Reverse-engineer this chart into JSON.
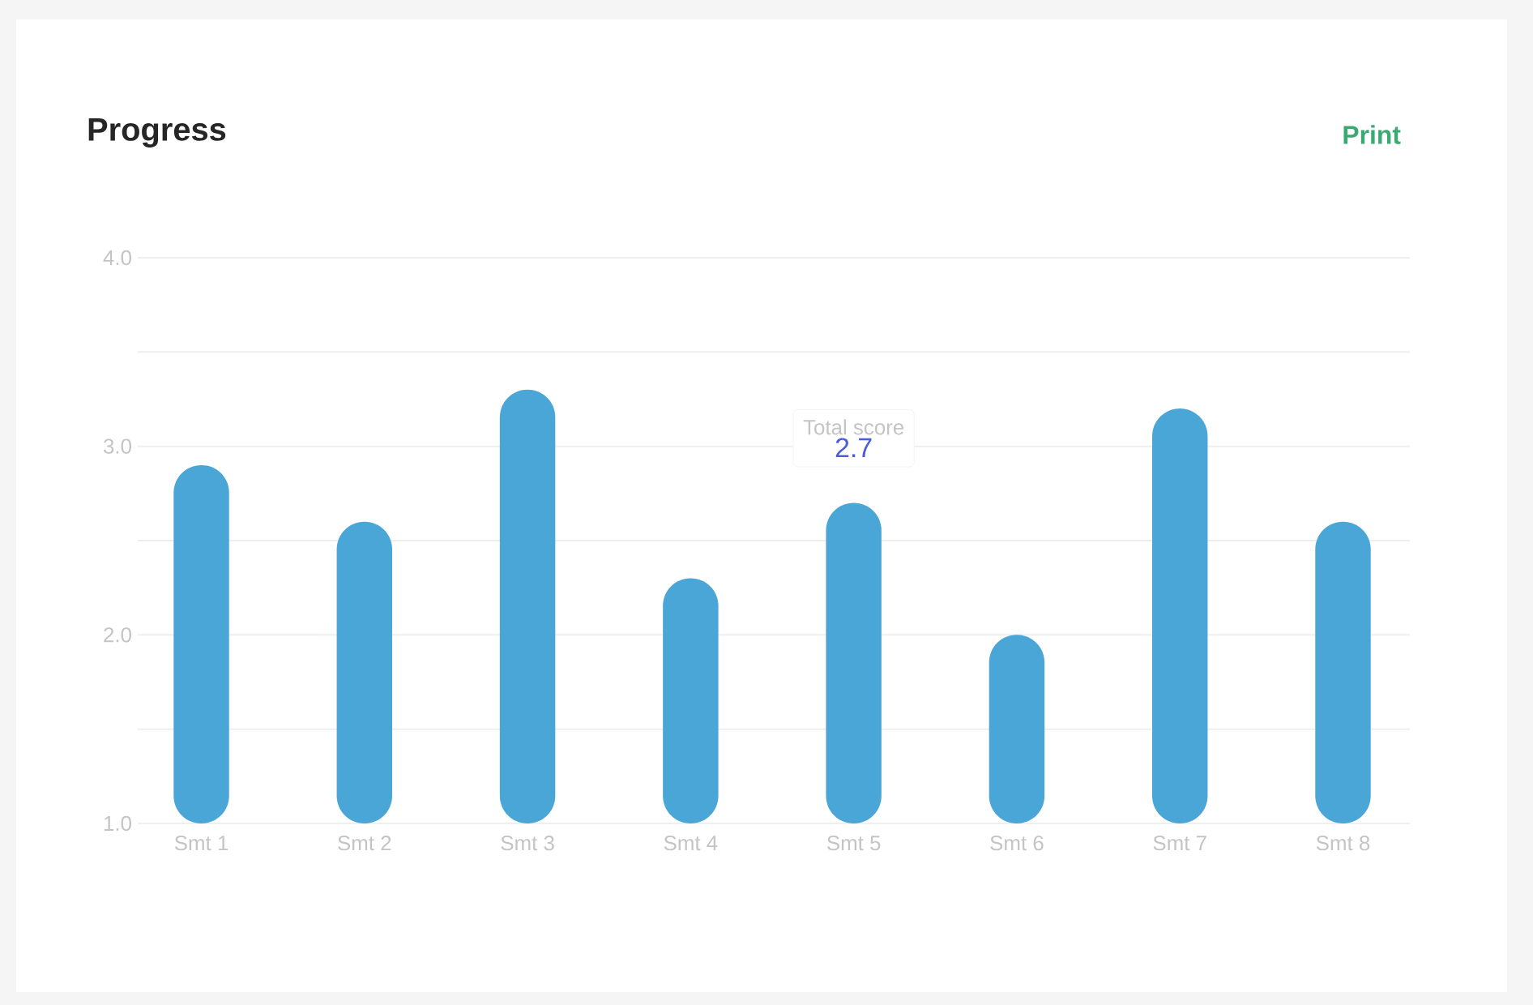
{
  "chart_data": {
    "type": "bar",
    "title": "Progress",
    "categories": [
      "Smt 1",
      "Smt 2",
      "Smt 3",
      "Smt 4",
      "Smt 5",
      "Smt 6",
      "Smt 7",
      "Smt 8"
    ],
    "values": [
      2.9,
      2.6,
      3.3,
      2.3,
      2.7,
      2.0,
      3.2,
      2.6
    ],
    "value_labels": [
      null,
      null,
      null,
      null,
      "2.7",
      null,
      null,
      null
    ],
    "color": "#4aa6d6",
    "ylim": [
      1.0,
      4.0
    ],
    "yticks": [
      {
        "value": 1,
        "label": "1.0"
      },
      {
        "value": 1.5,
        "label": null
      },
      {
        "value": 2,
        "label": "2.0"
      },
      {
        "value": 2.5,
        "label": null
      },
      {
        "value": 3,
        "label": "3.0"
      },
      {
        "value": 3.5,
        "label": null
      },
      {
        "value": 4,
        "label": "4.0"
      }
    ],
    "grid": "y",
    "annotations": [
      "Total score",
      "Print"
    ]
  }
}
